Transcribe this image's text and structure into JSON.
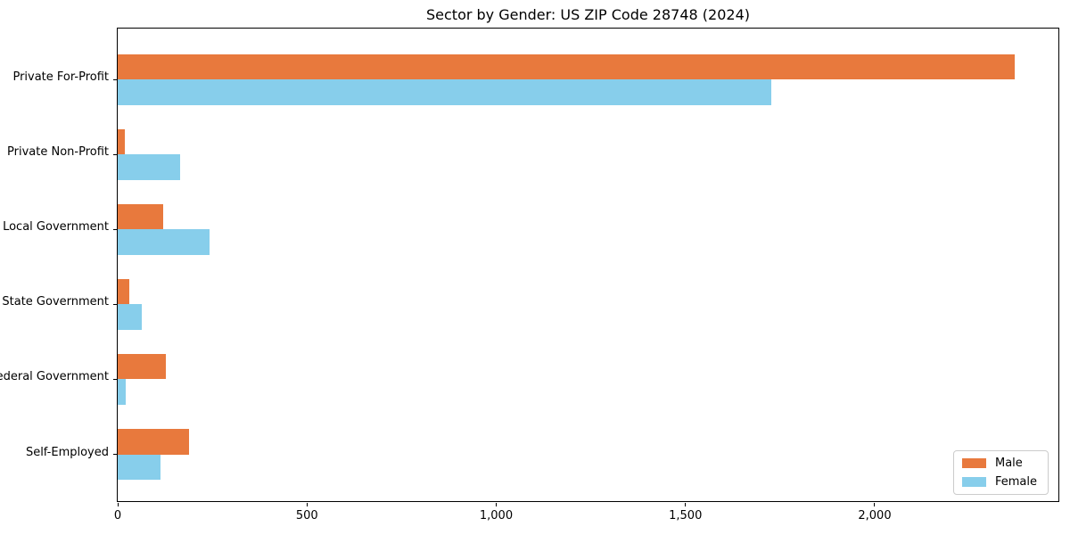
{
  "chart_data": {
    "type": "bar",
    "orientation": "horizontal",
    "title": "Sector by Gender: US ZIP Code 28748 (2024)",
    "categories": [
      "Private For-Profit",
      "Private Non-Profit",
      "Local Government",
      "State Government",
      "Federal Government",
      "Self-Employed"
    ],
    "series": [
      {
        "name": "Male",
        "color": "#e8793d",
        "values": [
          2370,
          19,
          120,
          30,
          127,
          188
        ]
      },
      {
        "name": "Female",
        "color": "#87ceeb",
        "values": [
          1727,
          166,
          243,
          64,
          21,
          112
        ]
      }
    ],
    "xlabel": "",
    "ylabel": "",
    "xlim": [
      0,
      2490
    ],
    "xticks": [
      0,
      500,
      1000,
      1500,
      2000
    ],
    "xtick_labels": [
      "0",
      "500",
      "1,000",
      "1,500",
      "2,000"
    ],
    "grid": false,
    "legend_position": "lower right"
  }
}
